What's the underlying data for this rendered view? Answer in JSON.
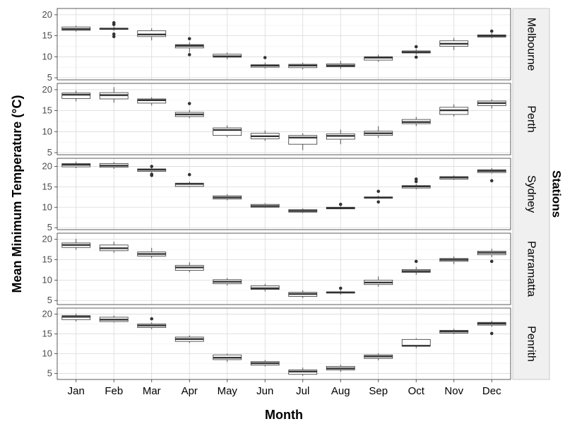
{
  "chart_data": {
    "type": "boxplot",
    "xlabel": "Month",
    "ylabel": "Mean Minimum Temperature (°C)",
    "legend_title": "Stations",
    "categories": [
      "Jan",
      "Feb",
      "Mar",
      "Apr",
      "May",
      "Jun",
      "Jul",
      "Aug",
      "Sep",
      "Oct",
      "Nov",
      "Dec"
    ],
    "y_ticks": [
      5,
      10,
      15,
      20
    ],
    "grid": true,
    "panels": [
      {
        "station": "Melbourne",
        "ylim": [
          4.5,
          21.5
        ],
        "boxes": [
          {
            "min": 16.0,
            "q1": 16.3,
            "median": 16.6,
            "q3": 17.1,
            "max": 17.4,
            "outliers": []
          },
          {
            "min": 16.2,
            "q1": 16.5,
            "median": 16.7,
            "q3": 16.8,
            "max": 17.2,
            "outliers": [
              14.8,
              15.4,
              17.7,
              18.1
            ]
          },
          {
            "min": 13.9,
            "q1": 14.8,
            "median": 15.3,
            "q3": 16.2,
            "max": 16.8,
            "outliers": []
          },
          {
            "min": 11.0,
            "q1": 12.1,
            "median": 12.6,
            "q3": 12.9,
            "max": 13.5,
            "outliers": [
              10.5,
              14.3
            ]
          },
          {
            "min": 9.4,
            "q1": 9.9,
            "median": 10.1,
            "q3": 10.6,
            "max": 11.0,
            "outliers": []
          },
          {
            "min": 7.2,
            "q1": 7.5,
            "median": 7.9,
            "q3": 8.1,
            "max": 8.6,
            "outliers": [
              9.8
            ]
          },
          {
            "min": 7.0,
            "q1": 7.4,
            "median": 7.9,
            "q3": 8.2,
            "max": 8.6,
            "outliers": []
          },
          {
            "min": 7.1,
            "q1": 7.6,
            "median": 7.9,
            "q3": 8.3,
            "max": 9.0,
            "outliers": []
          },
          {
            "min": 8.8,
            "q1": 9.2,
            "median": 9.8,
            "q3": 10.0,
            "max": 10.5,
            "outliers": []
          },
          {
            "min": 10.5,
            "q1": 10.9,
            "median": 11.1,
            "q3": 11.4,
            "max": 11.8,
            "outliers": [
              9.9,
              12.4
            ]
          },
          {
            "min": 11.6,
            "q1": 12.5,
            "median": 13.1,
            "q3": 13.8,
            "max": 14.5,
            "outliers": []
          },
          {
            "min": 14.4,
            "q1": 14.7,
            "median": 15.0,
            "q3": 15.2,
            "max": 15.6,
            "outliers": [
              16.1
            ]
          }
        ]
      },
      {
        "station": "Perth",
        "ylim": [
          4.5,
          21.5
        ],
        "boxes": [
          {
            "min": 17.2,
            "q1": 17.9,
            "median": 18.8,
            "q3": 19.2,
            "max": 19.8,
            "outliers": []
          },
          {
            "min": 16.9,
            "q1": 17.8,
            "median": 18.7,
            "q3": 19.3,
            "max": 20.6,
            "outliers": []
          },
          {
            "min": 16.2,
            "q1": 16.8,
            "median": 17.5,
            "q3": 17.8,
            "max": 18.2,
            "outliers": []
          },
          {
            "min": 13.2,
            "q1": 13.6,
            "median": 14.1,
            "q3": 14.6,
            "max": 15.2,
            "outliers": [
              16.7
            ]
          },
          {
            "min": 8.7,
            "q1": 9.1,
            "median": 10.4,
            "q3": 10.9,
            "max": 11.5,
            "outliers": []
          },
          {
            "min": 7.8,
            "q1": 8.3,
            "median": 8.9,
            "q3": 9.6,
            "max": 10.3,
            "outliers": []
          },
          {
            "min": 5.6,
            "q1": 7.0,
            "median": 8.6,
            "q3": 9.1,
            "max": 9.6,
            "outliers": []
          },
          {
            "min": 7.0,
            "q1": 8.2,
            "median": 9.0,
            "q3": 9.5,
            "max": 10.5,
            "outliers": []
          },
          {
            "min": 8.5,
            "q1": 9.1,
            "median": 9.6,
            "q3": 10.1,
            "max": 11.3,
            "outliers": []
          },
          {
            "min": 11.3,
            "q1": 11.9,
            "median": 12.3,
            "q3": 12.9,
            "max": 13.5,
            "outliers": []
          },
          {
            "min": 13.6,
            "q1": 14.1,
            "median": 15.1,
            "q3": 15.8,
            "max": 16.5,
            "outliers": []
          },
          {
            "min": 15.5,
            "q1": 16.2,
            "median": 16.8,
            "q3": 17.3,
            "max": 17.7,
            "outliers": []
          }
        ]
      },
      {
        "station": "Sydney",
        "ylim": [
          4.5,
          22.0
        ],
        "boxes": [
          {
            "min": 19.6,
            "q1": 19.9,
            "median": 20.4,
            "q3": 20.7,
            "max": 21.2,
            "outliers": []
          },
          {
            "min": 19.4,
            "q1": 19.8,
            "median": 20.2,
            "q3": 20.7,
            "max": 21.1,
            "outliers": []
          },
          {
            "min": 18.6,
            "q1": 18.8,
            "median": 19.2,
            "q3": 19.4,
            "max": 19.7,
            "outliers": [
              17.8,
              18.1,
              20.0
            ]
          },
          {
            "min": 14.9,
            "q1": 15.1,
            "median": 15.7,
            "q3": 15.9,
            "max": 16.3,
            "outliers": [
              18.0
            ]
          },
          {
            "min": 11.7,
            "q1": 12.0,
            "median": 12.4,
            "q3": 12.8,
            "max": 13.2,
            "outliers": []
          },
          {
            "min": 9.9,
            "q1": 10.0,
            "median": 10.3,
            "q3": 10.7,
            "max": 11.0,
            "outliers": []
          },
          {
            "min": 8.6,
            "q1": 8.8,
            "median": 9.1,
            "q3": 9.4,
            "max": 9.7,
            "outliers": []
          },
          {
            "min": 9.5,
            "q1": 9.6,
            "median": 9.8,
            "q3": 10.0,
            "max": 10.2,
            "outliers": [
              10.7
            ]
          },
          {
            "min": 12.1,
            "q1": 12.2,
            "median": 12.4,
            "q3": 12.5,
            "max": 12.8,
            "outliers": [
              11.3,
              13.9
            ]
          },
          {
            "min": 14.4,
            "q1": 14.7,
            "median": 15.1,
            "q3": 15.3,
            "max": 15.7,
            "outliers": [
              16.3,
              16.9
            ]
          },
          {
            "min": 16.7,
            "q1": 16.9,
            "median": 17.3,
            "q3": 17.5,
            "max": 17.8,
            "outliers": []
          },
          {
            "min": 18.3,
            "q1": 18.5,
            "median": 18.9,
            "q3": 19.2,
            "max": 19.6,
            "outliers": [
              16.5
            ]
          }
        ]
      },
      {
        "station": "Parramatta",
        "ylim": [
          4.0,
          21.5
        ],
        "boxes": [
          {
            "min": 17.4,
            "q1": 18.0,
            "median": 18.6,
            "q3": 19.1,
            "max": 20.1,
            "outliers": []
          },
          {
            "min": 16.7,
            "q1": 17.2,
            "median": 17.8,
            "q3": 18.6,
            "max": 19.4,
            "outliers": []
          },
          {
            "min": 15.4,
            "q1": 15.9,
            "median": 16.4,
            "q3": 16.9,
            "max": 17.9,
            "outliers": []
          },
          {
            "min": 11.9,
            "q1": 12.4,
            "median": 13.1,
            "q3": 13.6,
            "max": 14.4,
            "outliers": []
          },
          {
            "min": 8.7,
            "q1": 9.1,
            "median": 9.6,
            "q3": 10.1,
            "max": 10.5,
            "outliers": []
          },
          {
            "min": 7.2,
            "q1": 7.7,
            "median": 8.0,
            "q3": 8.6,
            "max": 9.1,
            "outliers": []
          },
          {
            "min": 5.6,
            "q1": 6.0,
            "median": 6.6,
            "q3": 7.0,
            "max": 7.5,
            "outliers": []
          },
          {
            "min": 6.4,
            "q1": 6.8,
            "median": 7.0,
            "q3": 7.1,
            "max": 7.5,
            "outliers": [
              8.0
            ]
          },
          {
            "min": 8.4,
            "q1": 8.9,
            "median": 9.4,
            "q3": 10.0,
            "max": 10.9,
            "outliers": []
          },
          {
            "min": 11.3,
            "q1": 11.9,
            "median": 12.2,
            "q3": 12.6,
            "max": 13.2,
            "outliers": [
              14.6
            ]
          },
          {
            "min": 13.9,
            "q1": 14.6,
            "median": 15.0,
            "q3": 15.3,
            "max": 15.8,
            "outliers": []
          },
          {
            "min": 15.6,
            "q1": 16.2,
            "median": 16.7,
            "q3": 17.1,
            "max": 17.7,
            "outliers": [
              14.6
            ]
          }
        ]
      },
      {
        "station": "Penrith",
        "ylim": [
          3.5,
          21.5
        ],
        "boxes": [
          {
            "min": 18.1,
            "q1": 18.6,
            "median": 19.3,
            "q3": 19.6,
            "max": 20.1,
            "outliers": []
          },
          {
            "min": 17.9,
            "q1": 18.1,
            "median": 18.6,
            "q3": 19.2,
            "max": 19.6,
            "outliers": []
          },
          {
            "min": 16.2,
            "q1": 16.6,
            "median": 17.1,
            "q3": 17.5,
            "max": 17.9,
            "outliers": [
              18.8
            ]
          },
          {
            "min": 12.7,
            "q1": 13.1,
            "median": 13.7,
            "q3": 14.2,
            "max": 14.6,
            "outliers": []
          },
          {
            "min": 7.9,
            "q1": 8.5,
            "median": 9.0,
            "q3": 9.7,
            "max": 10.0,
            "outliers": []
          },
          {
            "min": 6.8,
            "q1": 7.1,
            "median": 7.6,
            "q3": 8.0,
            "max": 8.4,
            "outliers": []
          },
          {
            "min": 4.4,
            "q1": 4.8,
            "median": 5.5,
            "q3": 5.9,
            "max": 6.5,
            "outliers": []
          },
          {
            "min": 5.4,
            "q1": 5.9,
            "median": 6.3,
            "q3": 6.8,
            "max": 7.2,
            "outliers": []
          },
          {
            "min": 8.3,
            "q1": 8.8,
            "median": 9.3,
            "q3": 9.7,
            "max": 10.1,
            "outliers": []
          },
          {
            "min": 11.4,
            "q1": 11.9,
            "median": 12.0,
            "q3": 13.6,
            "max": 13.9,
            "outliers": []
          },
          {
            "min": 14.9,
            "q1": 15.2,
            "median": 15.6,
            "q3": 15.9,
            "max": 16.3,
            "outliers": []
          },
          {
            "min": 16.8,
            "q1": 17.2,
            "median": 17.6,
            "q3": 17.9,
            "max": 18.3,
            "outliers": [
              15.1
            ]
          }
        ]
      }
    ]
  },
  "colors": {
    "panel_background": "#ffffff",
    "grid_major": "#d9d9d9",
    "grid_minor": "#efefef",
    "panel_border": "#333333",
    "box_line": "#333333",
    "box_fill": "#ffffff",
    "strip_background": "#f0f0f0",
    "strip_border": "#bdbdbd",
    "text_tick": "#4d4d4d",
    "text_title": "#000000"
  }
}
